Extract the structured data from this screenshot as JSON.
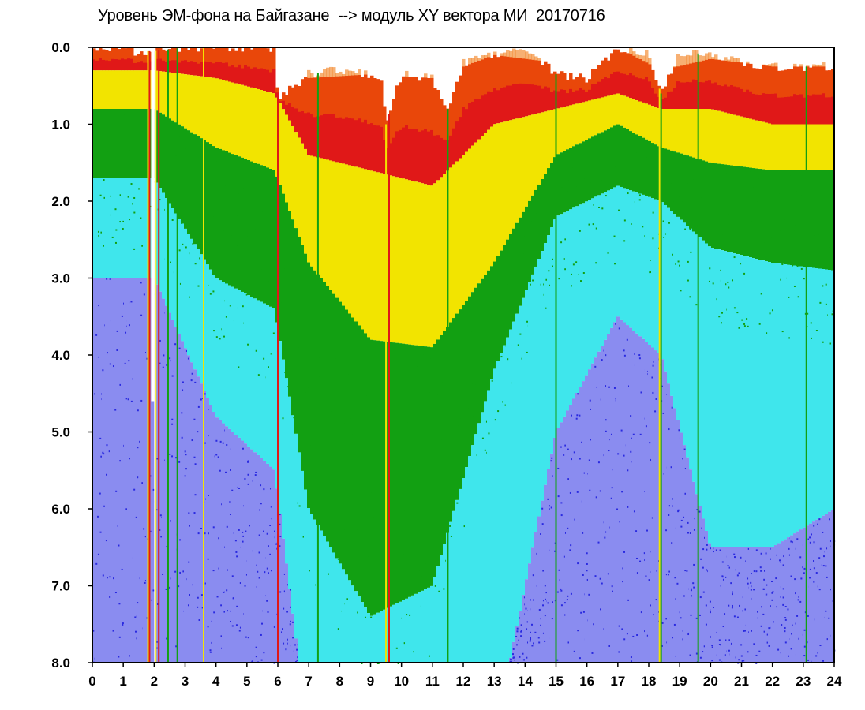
{
  "chart_data": {
    "type": "heatmap",
    "title": "Уровень ЭМ-фона на Байгазане  --> модуль XY вектора МИ  20170716",
    "xlabel": "",
    "ylabel": "",
    "xlim": [
      0,
      24
    ],
    "ylim": [
      0,
      8
    ],
    "y_inverted": true,
    "x_ticks": [
      "0",
      "1",
      "2",
      "3",
      "4",
      "5",
      "6",
      "7",
      "8",
      "9",
      "10",
      "11",
      "12",
      "13",
      "14",
      "15",
      "16",
      "17",
      "18",
      "19",
      "20",
      "21",
      "22",
      "23",
      "24"
    ],
    "y_ticks": [
      "0.0",
      "1.0",
      "2.0",
      "3.0",
      "4.0",
      "5.0",
      "6.0",
      "7.0",
      "8.0"
    ],
    "grid": false,
    "colorscale": [
      "#2a2ae0",
      "#8a8cf0",
      "#3fe6ec",
      "#12a012",
      "#f2e400",
      "#f07000",
      "#e01818"
    ],
    "background_color": "#ffffff",
    "upper_envelope": [
      [
        0,
        0.0
      ],
      [
        1,
        0.05
      ],
      [
        2,
        0.05
      ],
      [
        3,
        0.0
      ],
      [
        4,
        0.0
      ],
      [
        5,
        0.0
      ],
      [
        5.9,
        0.0
      ],
      [
        6.0,
        0.65
      ],
      [
        7,
        0.35
      ],
      [
        8,
        0.3
      ],
      [
        9,
        0.35
      ],
      [
        9.4,
        0.45
      ],
      [
        9.5,
        1.0
      ],
      [
        10,
        0.35
      ],
      [
        11,
        0.4
      ],
      [
        11.5,
        0.8
      ],
      [
        12,
        0.2
      ],
      [
        13,
        0.1
      ],
      [
        14,
        0.0
      ],
      [
        15,
        0.35
      ],
      [
        16,
        0.4
      ],
      [
        17,
        0.0
      ],
      [
        18,
        0.1
      ],
      [
        18.4,
        0.6
      ],
      [
        19,
        0.05
      ],
      [
        20,
        0.1
      ],
      [
        21,
        0.2
      ],
      [
        22,
        0.25
      ],
      [
        23,
        0.25
      ],
      [
        24,
        0.25
      ]
    ],
    "level_bands_top": [
      {
        "hour": 0,
        "red": 0.0,
        "yellow": 0.3,
        "green": 0.8,
        "cyan": 1.7,
        "blue": 3.0
      },
      {
        "hour": 2,
        "red": 0.0,
        "yellow": 0.3,
        "green": 0.8,
        "cyan": 1.7,
        "blue": 3.0
      },
      {
        "hour": 4,
        "red": 0.0,
        "yellow": 0.4,
        "green": 1.3,
        "cyan": 3.0,
        "blue": 4.8
      },
      {
        "hour": 5.9,
        "red": 0.0,
        "yellow": 0.6,
        "green": 1.6,
        "cyan": 3.4,
        "blue": 5.5
      },
      {
        "hour": 7,
        "red": 0.4,
        "yellow": 1.4,
        "green": 2.8,
        "cyan": 6.0,
        "blue": 9.0
      },
      {
        "hour": 9,
        "red": 0.35,
        "yellow": 1.6,
        "green": 3.8,
        "cyan": 7.4,
        "blue": 9.0
      },
      {
        "hour": 11,
        "red": 0.4,
        "yellow": 1.8,
        "green": 3.9,
        "cyan": 7.0,
        "blue": 9.0
      },
      {
        "hour": 13,
        "red": 0.1,
        "yellow": 1.0,
        "green": 2.8,
        "cyan": 4.2,
        "blue": 9.0
      },
      {
        "hour": 15,
        "red": 0.2,
        "yellow": 0.8,
        "green": 1.4,
        "cyan": 2.2,
        "blue": 5.0
      },
      {
        "hour": 17,
        "red": 0.0,
        "yellow": 0.6,
        "green": 1.0,
        "cyan": 1.8,
        "blue": 3.5
      },
      {
        "hour": 18.4,
        "red": 0.3,
        "yellow": 0.8,
        "green": 1.3,
        "cyan": 2.0,
        "blue": 4.0
      },
      {
        "hour": 20,
        "red": 0.15,
        "yellow": 0.8,
        "green": 1.5,
        "cyan": 2.6,
        "blue": 6.5
      },
      {
        "hour": 22,
        "red": 0.25,
        "yellow": 1.0,
        "green": 1.6,
        "cyan": 2.8,
        "blue": 6.5
      },
      {
        "hour": 24,
        "red": 0.25,
        "yellow": 1.0,
        "green": 1.6,
        "cyan": 2.9,
        "blue": 6.0
      }
    ],
    "vertical_streaks": [
      {
        "hour": 1.8,
        "color": "#f2e400"
      },
      {
        "hour": 1.85,
        "color": "#e01818"
      },
      {
        "hour": 2.05,
        "color": "#f2e400"
      },
      {
        "hour": 2.15,
        "color": "#e01818"
      },
      {
        "hour": 2.45,
        "color": "#12a012"
      },
      {
        "hour": 2.75,
        "color": "#12a012"
      },
      {
        "hour": 3.6,
        "color": "#f2e400"
      },
      {
        "hour": 6.0,
        "color": "#e01818"
      },
      {
        "hour": 7.3,
        "color": "#12a012"
      },
      {
        "hour": 9.5,
        "color": "#f2e400"
      },
      {
        "hour": 9.6,
        "color": "#e01818"
      },
      {
        "hour": 11.5,
        "color": "#12a012"
      },
      {
        "hour": 15.0,
        "color": "#12a012"
      },
      {
        "hour": 18.35,
        "color": "#f2e400"
      },
      {
        "hour": 18.4,
        "color": "#12a012"
      },
      {
        "hour": 19.6,
        "color": "#12a012"
      },
      {
        "hour": 23.1,
        "color": "#12a012"
      }
    ],
    "gaps": [
      {
        "from": 1.9,
        "to": 2.0,
        "y_from": 0.0,
        "y_to": 4.6
      },
      {
        "from": 2.0,
        "to": 2.05,
        "y_from": 0.0,
        "y_to": 8.0
      }
    ]
  }
}
